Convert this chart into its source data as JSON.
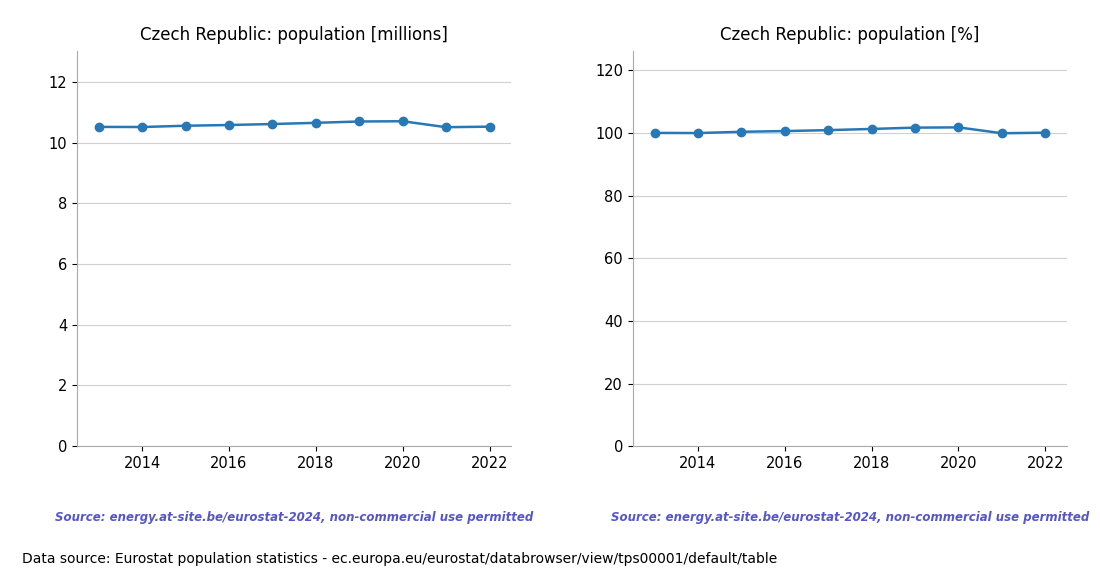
{
  "years": [
    2013,
    2014,
    2015,
    2016,
    2017,
    2018,
    2019,
    2020,
    2021,
    2022
  ],
  "population_millions": [
    10.516,
    10.512,
    10.554,
    10.578,
    10.61,
    10.65,
    10.694,
    10.702,
    10.506,
    10.524
  ],
  "population_pct": [
    100.0,
    99.96,
    100.36,
    100.59,
    100.89,
    101.27,
    101.69,
    101.77,
    99.9,
    100.07
  ],
  "title_left": "Czech Republic: population [millions]",
  "title_right": "Czech Republic: population [%]",
  "ylim_left": [
    0,
    13
  ],
  "ylim_right": [
    0,
    126
  ],
  "yticks_left": [
    0,
    2,
    4,
    6,
    8,
    10,
    12
  ],
  "yticks_right": [
    0,
    20,
    40,
    60,
    80,
    100,
    120
  ],
  "line_color": "#2878b5",
  "marker": "o",
  "markersize": 6,
  "linewidth": 1.8,
  "source_text": "Source: energy.at-site.be/eurostat-2024, non-commercial use permitted",
  "source_color": "#5555cc",
  "footer_text": "Data source: Eurostat population statistics - ec.europa.eu/eurostat/databrowser/view/tps00001/default/table",
  "footer_color": "#000000",
  "grid_color": "#d0d0d0",
  "background_color": "#ffffff",
  "title_fontsize": 12,
  "source_fontsize": 8.5,
  "footer_fontsize": 10,
  "tick_fontsize": 10.5,
  "xticks": [
    2014,
    2016,
    2018,
    2020,
    2022
  ]
}
